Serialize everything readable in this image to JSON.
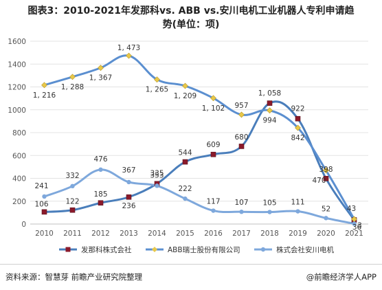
{
  "title": {
    "line1": "图表3：2010-2021年发那科vs. ABB vs.安川电机工业机器人专利申请趋",
    "line2": "势(单位：项)"
  },
  "footer": {
    "source": "资料来源：智慧芽 前瞻产业研究院整理",
    "brand": "@前瞻经济学人APP"
  },
  "chart_data": {
    "type": "line",
    "x": [
      "2010",
      "2011",
      "2012",
      "2013",
      "2014",
      "2015",
      "2016",
      "2017",
      "2018",
      "2019",
      "2020",
      "2021"
    ],
    "ylim": [
      0,
      1600
    ],
    "yticks": [
      0,
      200,
      400,
      600,
      800,
      1000,
      1200,
      1400,
      1600
    ],
    "ytick_labels": [
      "0",
      "200",
      "400",
      "600",
      "800",
      "1000",
      "1200",
      "1400",
      "1600"
    ],
    "legend_position": "bottom",
    "series": [
      {
        "name": "发那科株式会社",
        "color": "#4a7ebb",
        "marker_color": "#8b1a2b",
        "marker": "square",
        "values": [
          106,
          122,
          185,
          236,
          353,
          544,
          609,
          680,
          1058,
          922,
          398,
          36
        ],
        "labels": [
          "106",
          "122",
          "185",
          "236",
          "353",
          "544",
          "609",
          "680",
          "1, 058",
          "922",
          "398",
          "36"
        ]
      },
      {
        "name": "ABB瑞士股份有限公司",
        "color": "#5b8fd0",
        "marker_color": "#e8c84a",
        "marker": "diamond",
        "values": [
          1216,
          1288,
          1367,
          1473,
          1265,
          1209,
          1102,
          957,
          994,
          842,
          470,
          43
        ],
        "labels": [
          "1, 216",
          "1, 288",
          "1, 367",
          "1, 473",
          "1, 265",
          "1, 209",
          "1, 102",
          "957",
          "994",
          "842",
          "470",
          "43"
        ]
      },
      {
        "name": "株式会社安川电机",
        "color": "#7ea8dc",
        "marker_color": "#7ea8dc",
        "marker": "circle",
        "values": [
          241,
          332,
          476,
          367,
          335,
          222,
          117,
          107,
          105,
          111,
          52,
          3
        ],
        "labels": [
          "241",
          "332",
          "476",
          "367",
          "335",
          "222",
          "117",
          "107",
          "105",
          "111",
          "52",
          "3"
        ]
      }
    ]
  }
}
